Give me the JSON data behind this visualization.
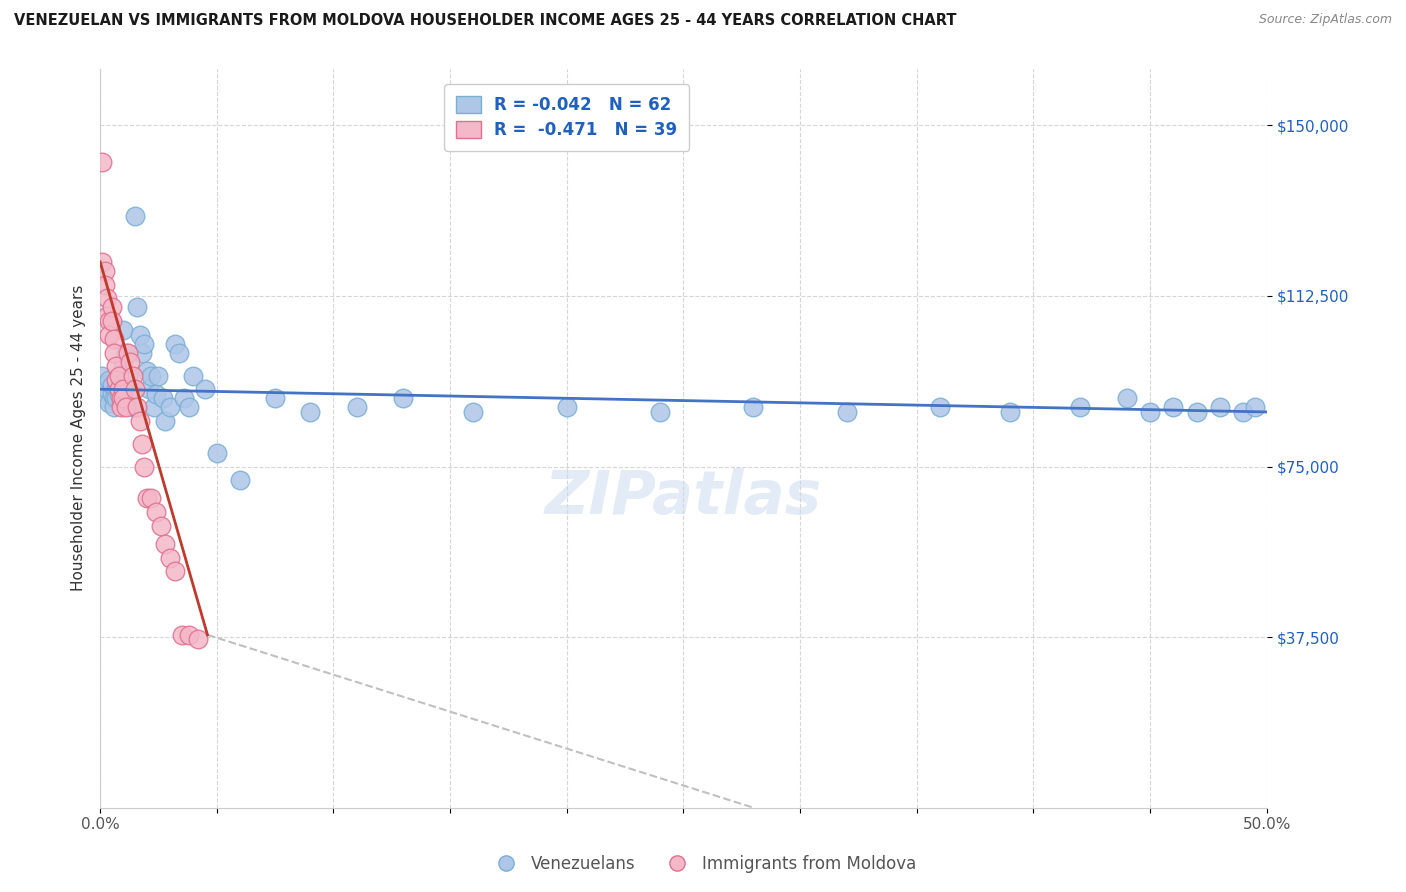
{
  "title": "VENEZUELAN VS IMMIGRANTS FROM MOLDOVA HOUSEHOLDER INCOME AGES 25 - 44 YEARS CORRELATION CHART",
  "source": "Source: ZipAtlas.com",
  "ylabel": "Householder Income Ages 25 - 44 years",
  "xlim": [
    0.0,
    0.5
  ],
  "ylim": [
    0,
    162500
  ],
  "yticks": [
    37500,
    75000,
    112500,
    150000
  ],
  "ytick_labels": [
    "$37,500",
    "$75,000",
    "$112,500",
    "$150,000"
  ],
  "xticks": [
    0.0,
    0.05,
    0.1,
    0.15,
    0.2,
    0.25,
    0.3,
    0.35,
    0.4,
    0.45,
    0.5
  ],
  "xtick_labels": [
    "0.0%",
    "",
    "",
    "",
    "",
    "",
    "",
    "",
    "",
    "",
    "50.0%"
  ],
  "venezuelan_R": -0.042,
  "venezuelan_N": 62,
  "moldova_R": -0.471,
  "moldova_N": 39,
  "blue_color": "#aec6e8",
  "blue_edge": "#7aafd4",
  "pink_color": "#f4b8c8",
  "pink_edge": "#e07090",
  "trend_blue": "#4472c4",
  "trend_pink": "#c0392b",
  "trend_gray": "#c0c0c0",
  "watermark": "ZIPatlas",
  "venezuelan_x": [
    0.001,
    0.002,
    0.002,
    0.003,
    0.003,
    0.004,
    0.004,
    0.005,
    0.005,
    0.006,
    0.006,
    0.007,
    0.007,
    0.008,
    0.009,
    0.01,
    0.01,
    0.011,
    0.012,
    0.013,
    0.014,
    0.015,
    0.016,
    0.017,
    0.018,
    0.019,
    0.02,
    0.021,
    0.022,
    0.023,
    0.024,
    0.025,
    0.027,
    0.028,
    0.03,
    0.032,
    0.034,
    0.036,
    0.038,
    0.04,
    0.045,
    0.05,
    0.06,
    0.075,
    0.09,
    0.11,
    0.13,
    0.16,
    0.2,
    0.24,
    0.28,
    0.32,
    0.36,
    0.39,
    0.42,
    0.44,
    0.45,
    0.46,
    0.47,
    0.48,
    0.49,
    0.495
  ],
  "venezuelan_y": [
    95000,
    91000,
    93000,
    90000,
    92000,
    89000,
    94000,
    91000,
    93000,
    90000,
    88000,
    92000,
    90000,
    91000,
    89000,
    105000,
    98000,
    100000,
    95000,
    92000,
    88000,
    130000,
    110000,
    104000,
    100000,
    102000,
    96000,
    92000,
    95000,
    88000,
    91000,
    95000,
    90000,
    85000,
    88000,
    102000,
    100000,
    90000,
    88000,
    95000,
    92000,
    78000,
    72000,
    90000,
    87000,
    88000,
    90000,
    87000,
    88000,
    87000,
    88000,
    87000,
    88000,
    87000,
    88000,
    90000,
    87000,
    88000,
    87000,
    88000,
    87000,
    88000
  ],
  "moldova_x": [
    0.001,
    0.001,
    0.002,
    0.002,
    0.003,
    0.003,
    0.004,
    0.004,
    0.005,
    0.005,
    0.006,
    0.006,
    0.007,
    0.007,
    0.008,
    0.008,
    0.009,
    0.009,
    0.01,
    0.01,
    0.011,
    0.012,
    0.013,
    0.014,
    0.015,
    0.016,
    0.017,
    0.018,
    0.019,
    0.02,
    0.022,
    0.024,
    0.026,
    0.028,
    0.03,
    0.032,
    0.035,
    0.038,
    0.042
  ],
  "moldova_y": [
    142000,
    120000,
    118000,
    115000,
    112000,
    108000,
    107000,
    104000,
    110000,
    107000,
    103000,
    100000,
    97000,
    94000,
    92000,
    95000,
    90000,
    88000,
    92000,
    90000,
    88000,
    100000,
    98000,
    95000,
    92000,
    88000,
    85000,
    80000,
    75000,
    68000,
    68000,
    65000,
    62000,
    58000,
    55000,
    52000,
    38000,
    38000,
    37000
  ],
  "blue_trend_x": [
    0.0,
    0.5
  ],
  "blue_trend_y": [
    92000,
    87000
  ],
  "pink_trend_x": [
    0.0,
    0.046
  ],
  "pink_trend_y": [
    120000,
    38000
  ],
  "gray_trend_x": [
    0.046,
    0.28
  ],
  "gray_trend_y": [
    38000,
    0
  ]
}
